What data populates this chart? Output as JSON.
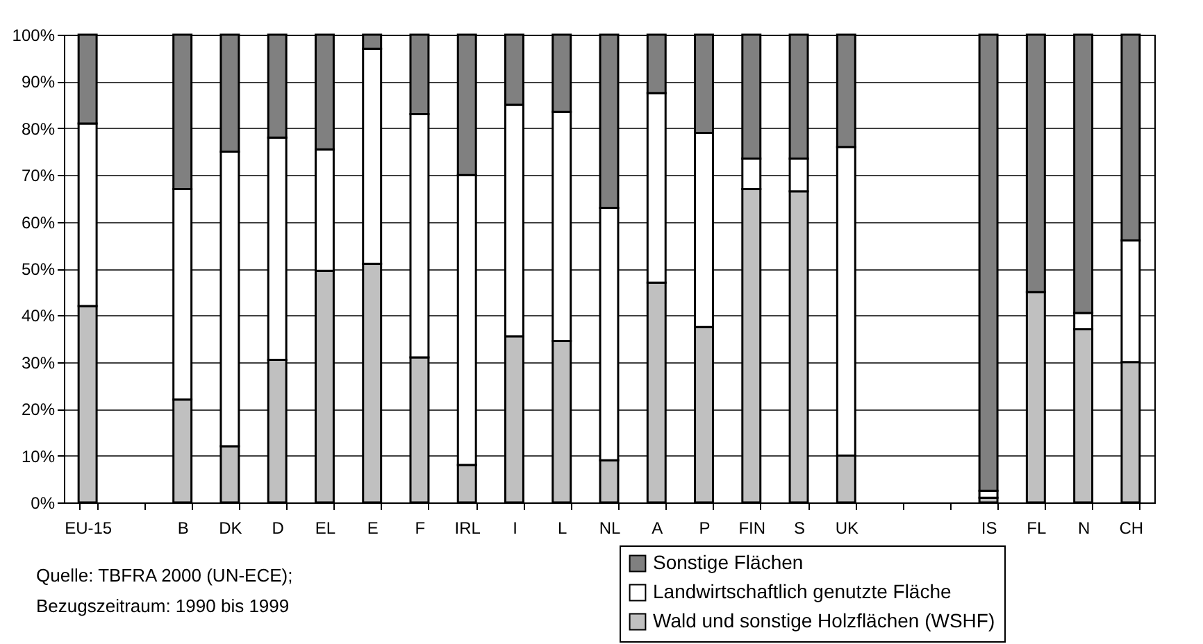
{
  "chart_data": {
    "type": "bar",
    "stacked": true,
    "categories": [
      "EU-15",
      null,
      "B",
      "DK",
      "D",
      "EL",
      "E",
      "F",
      "IRL",
      "I",
      "L",
      "NL",
      "A",
      "P",
      "FIN",
      "S",
      "UK",
      null,
      null,
      "IS",
      "FL",
      "N",
      "CH"
    ],
    "series": [
      {
        "name": "Wald und sonstige Holzflächen (WSHF)",
        "color": "#c0c0c0",
        "values": [
          42,
          null,
          22,
          12,
          30.5,
          49.5,
          51,
          31,
          8,
          35.5,
          34.5,
          9,
          47,
          37.5,
          67,
          66.5,
          10,
          null,
          null,
          1,
          45,
          37,
          30
        ]
      },
      {
        "name": "Landwirtschaftlich genutzte Fläche",
        "color": "#ffffff",
        "values": [
          39,
          null,
          45,
          63,
          47.5,
          26,
          46,
          52,
          62,
          49.5,
          49,
          54,
          40.5,
          41.5,
          6.5,
          7,
          66,
          null,
          null,
          1.5,
          0,
          3.5,
          26
        ]
      },
      {
        "name": "Sonstige Flächen",
        "color": "#808080",
        "values": [
          19,
          null,
          33,
          25,
          22,
          24.5,
          3,
          17,
          30,
          15,
          16.5,
          37,
          12.5,
          21,
          26.5,
          26.5,
          24,
          null,
          null,
          97.5,
          55,
          59.5,
          44
        ]
      }
    ],
    "ylim": [
      0,
      100
    ],
    "yticks": [
      {
        "value": 0,
        "label": "0%"
      },
      {
        "value": 10,
        "label": "10%"
      },
      {
        "value": 20,
        "label": "20%"
      },
      {
        "value": 30,
        "label": "30%"
      },
      {
        "value": 40,
        "label": "40%"
      },
      {
        "value": 50,
        "label": "50%"
      },
      {
        "value": 60,
        "label": "60%"
      },
      {
        "value": 70,
        "label": "70%"
      },
      {
        "value": 80,
        "label": "80%"
      },
      {
        "value": 90,
        "label": "90%"
      },
      {
        "value": 100,
        "label": "100%"
      }
    ],
    "grid": "y",
    "legend": "bottom right",
    "annotations": [
      "Quelle: TBFRA 2000 (UN-ECE);",
      "Bezugszeitraum: 1990 bis 1999"
    ]
  }
}
